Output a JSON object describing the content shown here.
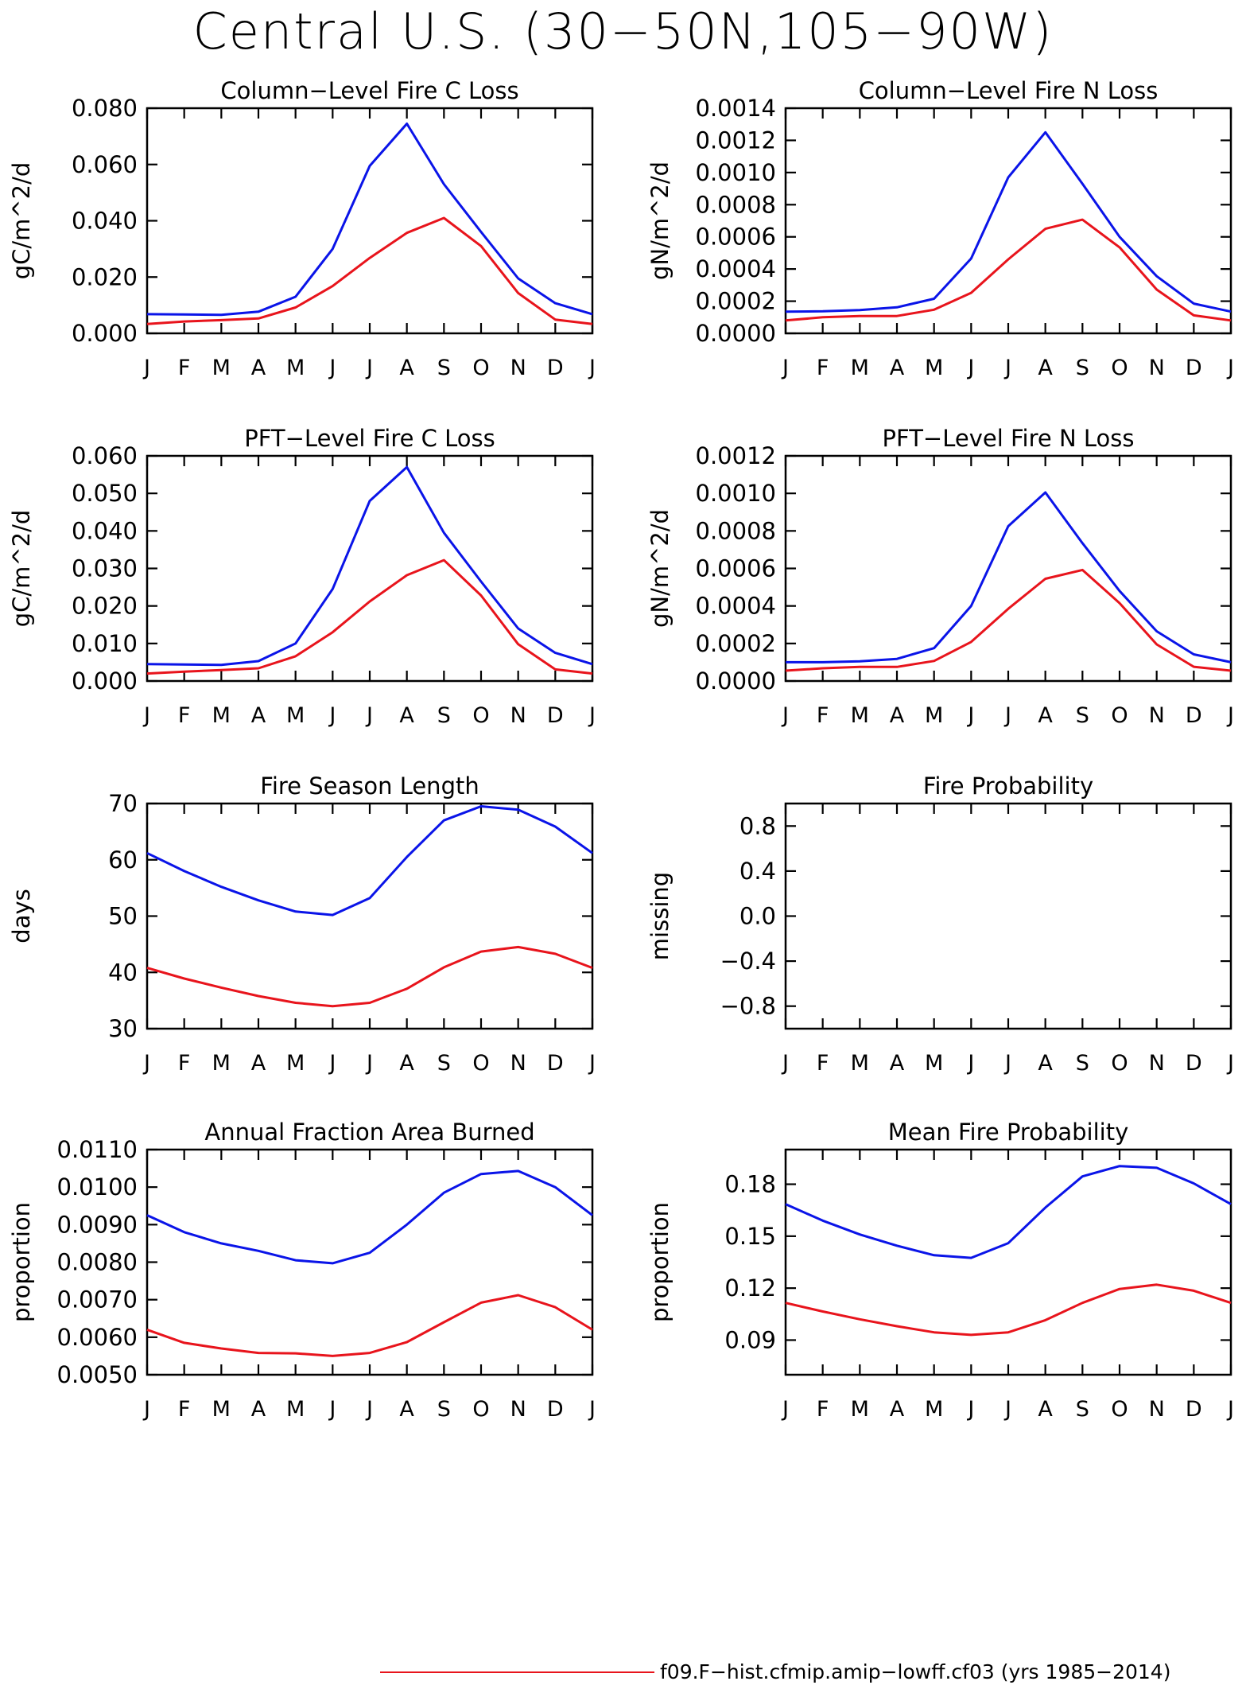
{
  "title": "Central U.S. (30−50N,105−90W)",
  "months": [
    "J",
    "F",
    "M",
    "A",
    "M",
    "J",
    "J",
    "A",
    "S",
    "O",
    "N",
    "D",
    "J"
  ],
  "colors": {
    "series_a": "#0a14e8",
    "series_b": "#e8141c"
  },
  "legend": {
    "label": "f09.F−hist.cfmip.amip−lowff.cf03 (yrs 1985−2014)",
    "color": "#e8141c"
  },
  "chart_data": [
    {
      "type": "line",
      "title": "Column−Level Fire C Loss",
      "ylabel": "gC/m^2/d",
      "ylim": [
        0,
        0.08
      ],
      "yticks": [
        0,
        0.02,
        0.04,
        0.06,
        0.08
      ],
      "ytick_labels": [
        "0.000",
        "0.020",
        "0.040",
        "0.060",
        "0.080"
      ],
      "categories": [
        "J",
        "F",
        "M",
        "A",
        "M",
        "J",
        "J",
        "A",
        "S",
        "O",
        "N",
        "D",
        "J"
      ],
      "series": [
        {
          "color": "#0a14e8",
          "values": [
            0.0068,
            0.0067,
            0.0066,
            0.0077,
            0.013,
            0.03,
            0.0595,
            0.0745,
            0.053,
            0.036,
            0.0195,
            0.0107,
            0.0068
          ]
        },
        {
          "color": "#e8141c",
          "values": [
            0.0033,
            0.0042,
            0.0047,
            0.0053,
            0.0092,
            0.0168,
            0.0268,
            0.0357,
            0.041,
            0.031,
            0.0143,
            0.0049,
            0.0033
          ]
        }
      ]
    },
    {
      "type": "line",
      "title": "Column−Level Fire N Loss",
      "ylabel": "gN/m^2/d",
      "ylim": [
        0,
        0.0014
      ],
      "yticks": [
        0,
        0.0002,
        0.0004,
        0.0006,
        0.0008,
        0.001,
        0.0012,
        0.0014
      ],
      "ytick_labels": [
        "0.0000",
        "0.0002",
        "0.0004",
        "0.0006",
        "0.0008",
        "0.0010",
        "0.0012",
        "0.0014"
      ],
      "categories": [
        "J",
        "F",
        "M",
        "A",
        "M",
        "J",
        "J",
        "A",
        "S",
        "O",
        "N",
        "D",
        "J"
      ],
      "series": [
        {
          "color": "#0a14e8",
          "values": [
            0.000135,
            0.000137,
            0.000145,
            0.000162,
            0.000215,
            0.000465,
            0.00097,
            0.00125,
            0.00093,
            0.0006,
            0.000355,
            0.000185,
            0.000135
          ]
        },
        {
          "color": "#e8141c",
          "values": [
            8e-05,
            0.0001,
            0.000108,
            0.000108,
            0.000147,
            0.000252,
            0.00046,
            0.00065,
            0.000707,
            0.000535,
            0.000272,
            0.000112,
            8e-05
          ]
        }
      ]
    },
    {
      "type": "line",
      "title": "PFT−Level Fire C Loss",
      "ylabel": "gC/m^2/d",
      "ylim": [
        0,
        0.06
      ],
      "yticks": [
        0,
        0.01,
        0.02,
        0.03,
        0.04,
        0.05,
        0.06
      ],
      "ytick_labels": [
        "0.000",
        "0.010",
        "0.020",
        "0.030",
        "0.040",
        "0.050",
        "0.060"
      ],
      "categories": [
        "J",
        "F",
        "M",
        "A",
        "M",
        "J",
        "J",
        "A",
        "S",
        "O",
        "N",
        "D",
        "J"
      ],
      "series": [
        {
          "color": "#0a14e8",
          "values": [
            0.0045,
            0.0044,
            0.0043,
            0.0053,
            0.01,
            0.0245,
            0.048,
            0.057,
            0.0395,
            0.0265,
            0.014,
            0.0075,
            0.0045
          ]
        },
        {
          "color": "#e8141c",
          "values": [
            0.002,
            0.0025,
            0.0029,
            0.0034,
            0.0066,
            0.013,
            0.0212,
            0.0282,
            0.0322,
            0.0228,
            0.0098,
            0.0031,
            0.002
          ]
        }
      ]
    },
    {
      "type": "line",
      "title": "PFT−Level Fire N Loss",
      "ylabel": "gN/m^2/d",
      "ylim": [
        0,
        0.0012
      ],
      "yticks": [
        0,
        0.0002,
        0.0004,
        0.0006,
        0.0008,
        0.001,
        0.0012
      ],
      "ytick_labels": [
        "0.0000",
        "0.0002",
        "0.0004",
        "0.0006",
        "0.0008",
        "0.0010",
        "0.0012"
      ],
      "categories": [
        "J",
        "F",
        "M",
        "A",
        "M",
        "J",
        "J",
        "A",
        "S",
        "O",
        "N",
        "D",
        "J"
      ],
      "series": [
        {
          "color": "#0a14e8",
          "values": [
            0.0001,
            0.0001,
            0.000105,
            0.000118,
            0.000175,
            0.0004,
            0.000825,
            0.001005,
            0.000735,
            0.00048,
            0.000265,
            0.000142,
            0.0001
          ]
        },
        {
          "color": "#e8141c",
          "values": [
            5.5e-05,
            6.8e-05,
            7.5e-05,
            7.5e-05,
            0.000107,
            0.000208,
            0.000385,
            0.000545,
            0.000592,
            0.000415,
            0.000195,
            7.6e-05,
            5.5e-05
          ]
        }
      ]
    },
    {
      "type": "line",
      "title": "Fire Season Length",
      "ylabel": "days",
      "ylim": [
        30,
        70
      ],
      "yticks": [
        30,
        40,
        50,
        60,
        70
      ],
      "ytick_labels": [
        "30",
        "40",
        "50",
        "60",
        "70"
      ],
      "categories": [
        "J",
        "F",
        "M",
        "A",
        "M",
        "J",
        "J",
        "A",
        "S",
        "O",
        "N",
        "D",
        "J"
      ],
      "series": [
        {
          "color": "#0a14e8",
          "values": [
            61.2,
            58,
            55.2,
            52.8,
            50.8,
            50.2,
            53.2,
            60.5,
            67,
            69.5,
            68.9,
            65.9,
            61.2
          ]
        },
        {
          "color": "#e8141c",
          "values": [
            40.8,
            38.9,
            37.3,
            35.8,
            34.6,
            34,
            34.6,
            37.1,
            40.9,
            43.7,
            44.5,
            43.3,
            40.8
          ]
        }
      ]
    },
    {
      "type": "line",
      "title": "Fire Probability",
      "ylabel": "missing",
      "ylim": [
        -1,
        1
      ],
      "yticks": [
        -0.8,
        -0.4,
        0,
        0.4,
        0.8
      ],
      "ytick_labels": [
        "−0.8",
        "−0.4",
        "0.0",
        "0.4",
        "0.8"
      ],
      "categories": [
        "J",
        "F",
        "M",
        "A",
        "M",
        "J",
        "J",
        "A",
        "S",
        "O",
        "N",
        "D",
        "J"
      ],
      "series": []
    },
    {
      "type": "line",
      "title": "Annual Fraction Area Burned",
      "ylabel": "proportion",
      "ylim": [
        0.005,
        0.011
      ],
      "yticks": [
        0.005,
        0.006,
        0.007,
        0.008,
        0.009,
        0.01,
        0.011
      ],
      "ytick_labels": [
        "0.0050",
        "0.0060",
        "0.0070",
        "0.0080",
        "0.0090",
        "0.0100",
        "0.0110"
      ],
      "categories": [
        "J",
        "F",
        "M",
        "A",
        "M",
        "J",
        "J",
        "A",
        "S",
        "O",
        "N",
        "D",
        "J"
      ],
      "series": [
        {
          "color": "#0a14e8",
          "values": [
            0.00925,
            0.0088,
            0.0085,
            0.0083,
            0.00805,
            0.00797,
            0.00825,
            0.009,
            0.00985,
            0.01035,
            0.01043,
            0.01,
            0.00925
          ]
        },
        {
          "color": "#e8141c",
          "values": [
            0.0062,
            0.00585,
            0.0057,
            0.00558,
            0.00557,
            0.0055,
            0.00558,
            0.00587,
            0.0064,
            0.00692,
            0.00712,
            0.0068,
            0.0062
          ]
        }
      ]
    },
    {
      "type": "line",
      "title": "Mean Fire Probability",
      "ylabel": "proportion",
      "ylim": [
        0.07,
        0.2
      ],
      "yticks": [
        0.09,
        0.12,
        0.15,
        0.18
      ],
      "ytick_labels": [
        "0.09",
        "0.12",
        "0.15",
        "0.18"
      ],
      "categories": [
        "J",
        "F",
        "M",
        "A",
        "M",
        "J",
        "J",
        "A",
        "S",
        "O",
        "N",
        "D",
        "J"
      ],
      "series": [
        {
          "color": "#0a14e8",
          "values": [
            0.1685,
            0.159,
            0.151,
            0.1445,
            0.139,
            0.1375,
            0.146,
            0.1665,
            0.1845,
            0.1905,
            0.1895,
            0.1805,
            0.1685
          ]
        },
        {
          "color": "#e8141c",
          "values": [
            0.1115,
            0.1065,
            0.102,
            0.098,
            0.0945,
            0.093,
            0.0945,
            0.1015,
            0.1115,
            0.1195,
            0.122,
            0.1185,
            0.1115
          ]
        }
      ]
    }
  ]
}
